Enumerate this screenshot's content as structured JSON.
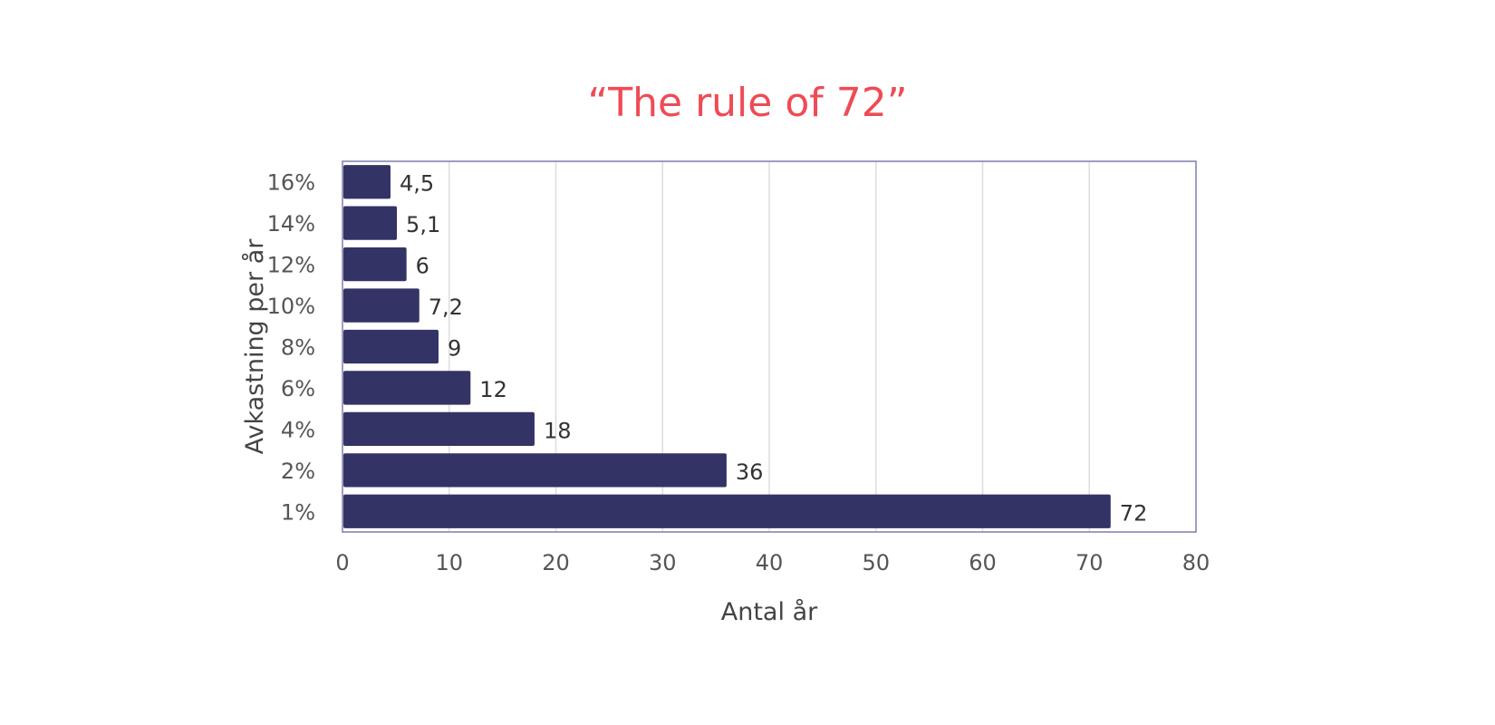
{
  "chart_data": {
    "type": "bar",
    "orientation": "horizontal",
    "title": "“The rule of 72”",
    "xlabel": "Antal år",
    "ylabel": "Avkastning per år",
    "categories": [
      "16%",
      "14%",
      "12%",
      "10%",
      "8%",
      "6%",
      "4%",
      "2%",
      "1%"
    ],
    "values": [
      4.5,
      5.1,
      6,
      7.2,
      9,
      12,
      18,
      36,
      72
    ],
    "value_labels": [
      "4,5",
      "5,1",
      "6",
      "7,2",
      "9",
      "12",
      "18",
      "36",
      "72"
    ],
    "xlim": [
      0,
      80
    ],
    "xticks": [
      0,
      10,
      20,
      30,
      40,
      50,
      60,
      70,
      80
    ],
    "grid": "vertical",
    "legend": "none",
    "colors": {
      "bar": "#333366",
      "title": "#ef4b55",
      "grid": "#dddddd",
      "frame": "#7d7dad"
    }
  }
}
